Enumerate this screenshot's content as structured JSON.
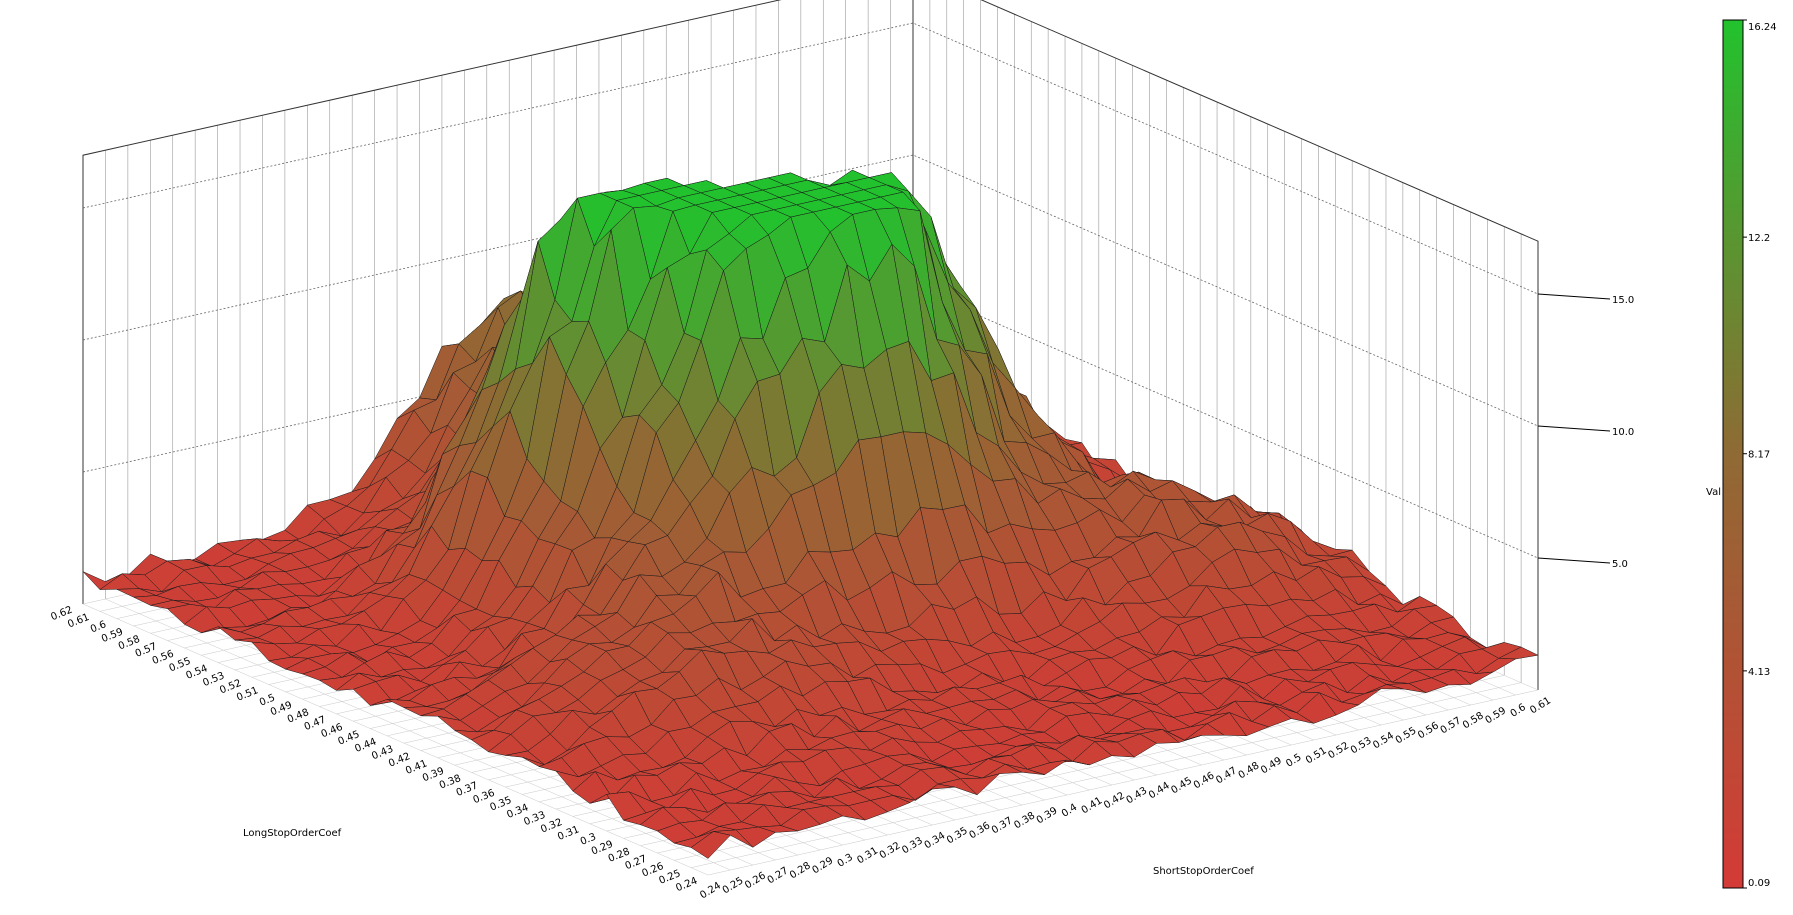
{
  "chart_data": {
    "type": "surface3d",
    "x_axis": {
      "label": "ShortStopOrderCoef",
      "ticks": [
        "0.24",
        "0.25",
        "0.26",
        "0.27",
        "0.28",
        "0.29",
        "0.3",
        "0.31",
        "0.32",
        "0.33",
        "0.34",
        "0.35",
        "0.36",
        "0.37",
        "0.38",
        "0.39",
        "0.4",
        "0.41",
        "0.42",
        "0.43",
        "0.44",
        "0.45",
        "0.46",
        "0.47",
        "0.48",
        "0.49",
        "0.5",
        "0.51",
        "0.52",
        "0.53",
        "0.54",
        "0.55",
        "0.56",
        "0.57",
        "0.58",
        "0.59",
        "0.6",
        "0.61"
      ],
      "range": [
        0.24,
        0.61
      ]
    },
    "y_axis": {
      "label": "LongStopOrderCoef",
      "ticks": [
        "0.24",
        "0.25",
        "0.26",
        "0.27",
        "0.28",
        "0.29",
        "0.3",
        "0.31",
        "0.32",
        "0.33",
        "0.34",
        "0.35",
        "0.36",
        "0.37",
        "0.38",
        "0.39",
        "0.41",
        "0.42",
        "0.43",
        "0.44",
        "0.45",
        "0.46",
        "0.47",
        "0.48",
        "0.49",
        "0.5",
        "0.51",
        "0.52",
        "0.53",
        "0.54",
        "0.55",
        "0.56",
        "0.57",
        "0.58",
        "0.59",
        "0.6",
        "0.61",
        "0.62"
      ],
      "range": [
        0.24,
        0.62
      ]
    },
    "z_axis": {
      "label": "Val",
      "ticks": [
        "5.0",
        "10.0",
        "15.0"
      ],
      "range": [
        0,
        17
      ]
    },
    "colorbar": {
      "ticks": [
        "0.09",
        "4.13",
        "8.17",
        "12.2",
        "16.24"
      ],
      "min": 0.09,
      "max": 16.24,
      "low_color": "#d43a36",
      "mid_color": "#8f6a34",
      "high_color": "#22c22e"
    },
    "surface": {
      "base": 1.0,
      "peaks": [
        {
          "x": 0.415,
          "y": 0.46,
          "z": 15.2,
          "spread": 0.045
        },
        {
          "x": 0.37,
          "y": 0.51,
          "z": 8.5,
          "spread": 0.03
        },
        {
          "x": 0.455,
          "y": 0.43,
          "z": 6.5,
          "spread": 0.03
        },
        {
          "x": 0.5,
          "y": 0.47,
          "z": 7.5,
          "spread": 0.035
        },
        {
          "x": 0.525,
          "y": 0.55,
          "z": 8.0,
          "spread": 0.04
        },
        {
          "x": 0.42,
          "y": 0.6,
          "z": 7.0,
          "spread": 0.035
        },
        {
          "x": 0.55,
          "y": 0.38,
          "z": 3.5,
          "spread": 0.04
        },
        {
          "x": 0.33,
          "y": 0.38,
          "z": 3.0,
          "spread": 0.04
        }
      ],
      "roughness": 0.6
    }
  }
}
